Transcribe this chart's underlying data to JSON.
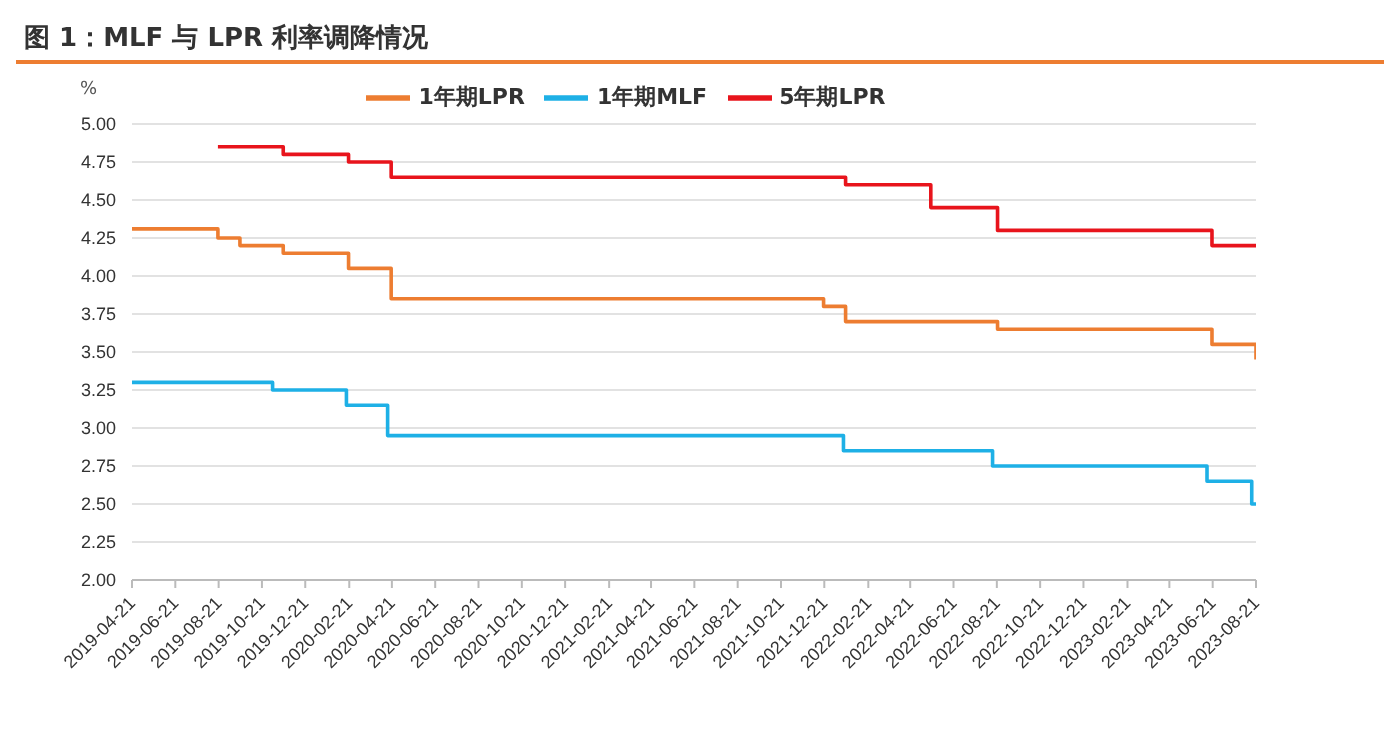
{
  "chart_data": {
    "type": "step",
    "title": "图 1：MLF 与 LPR 利率调降情况",
    "ylabel": "%",
    "series": [
      {
        "name": "1年期LPR",
        "color": "#ed7d31",
        "x": [
          "2019-04-21",
          "2019-08-20",
          "2019-09-20",
          "2019-11-20",
          "2020-02-20",
          "2020-04-20",
          "2021-12-20",
          "2022-01-20",
          "2022-08-22",
          "2023-06-20",
          "2023-08-21"
        ],
        "values": [
          4.31,
          4.25,
          4.2,
          4.15,
          4.05,
          3.85,
          3.8,
          3.7,
          3.65,
          3.55,
          3.45
        ]
      },
      {
        "name": "5年期LPR",
        "color": "#e8141c",
        "x": [
          "2019-08-20",
          "2019-11-20",
          "2020-02-20",
          "2020-04-20",
          "2022-01-20",
          "2022-05-20",
          "2022-08-22",
          "2023-06-20",
          "2023-08-21"
        ],
        "values": [
          4.85,
          4.8,
          4.75,
          4.65,
          4.6,
          4.45,
          4.3,
          4.2,
          4.2
        ]
      },
      {
        "name": "1年期MLF",
        "color": "#1eb0e6",
        "x": [
          "2019-04-21",
          "2019-11-05",
          "2020-02-17",
          "2020-04-15",
          "2022-01-17",
          "2022-08-15",
          "2023-06-13",
          "2023-08-15",
          "2023-08-21"
        ],
        "values": [
          3.3,
          3.25,
          3.15,
          2.95,
          2.85,
          2.75,
          2.65,
          2.5,
          2.5
        ]
      }
    ],
    "xlim": [
      "2019-04-21",
      "2023-08-21"
    ],
    "xticks": [
      "2019-04-21",
      "2019-06-21",
      "2019-08-21",
      "2019-10-21",
      "2019-12-21",
      "2020-02-21",
      "2020-04-21",
      "2020-06-21",
      "2020-08-21",
      "2020-10-21",
      "2020-12-21",
      "2021-02-21",
      "2021-04-21",
      "2021-06-21",
      "2021-08-21",
      "2021-10-21",
      "2021-12-21",
      "2022-02-21",
      "2022-04-21",
      "2022-06-21",
      "2022-08-21",
      "2022-10-21",
      "2022-12-21",
      "2023-02-21",
      "2023-04-21",
      "2023-06-21",
      "2023-08-21"
    ],
    "ylim": [
      2,
      5
    ],
    "yticks": [
      {
        "value": 2,
        "label": "2.00"
      },
      {
        "value": 2.25,
        "label": "2.25"
      },
      {
        "value": 2.5,
        "label": "2.50"
      },
      {
        "value": 2.75,
        "label": "2.75"
      },
      {
        "value": 3,
        "label": "3.00"
      },
      {
        "value": 3.25,
        "label": "3.25"
      },
      {
        "value": 3.5,
        "label": "3.50"
      },
      {
        "value": 3.75,
        "label": "3.75"
      },
      {
        "value": 4,
        "label": "4.00"
      },
      {
        "value": 4.25,
        "label": "4.25"
      },
      {
        "value": 4.5,
        "label": "4.50"
      },
      {
        "value": 4.75,
        "label": "4.75"
      },
      {
        "value": 5,
        "label": "5.00"
      }
    ],
    "grid": "y",
    "legend": "top",
    "marker": "none",
    "line_style": "solid"
  }
}
